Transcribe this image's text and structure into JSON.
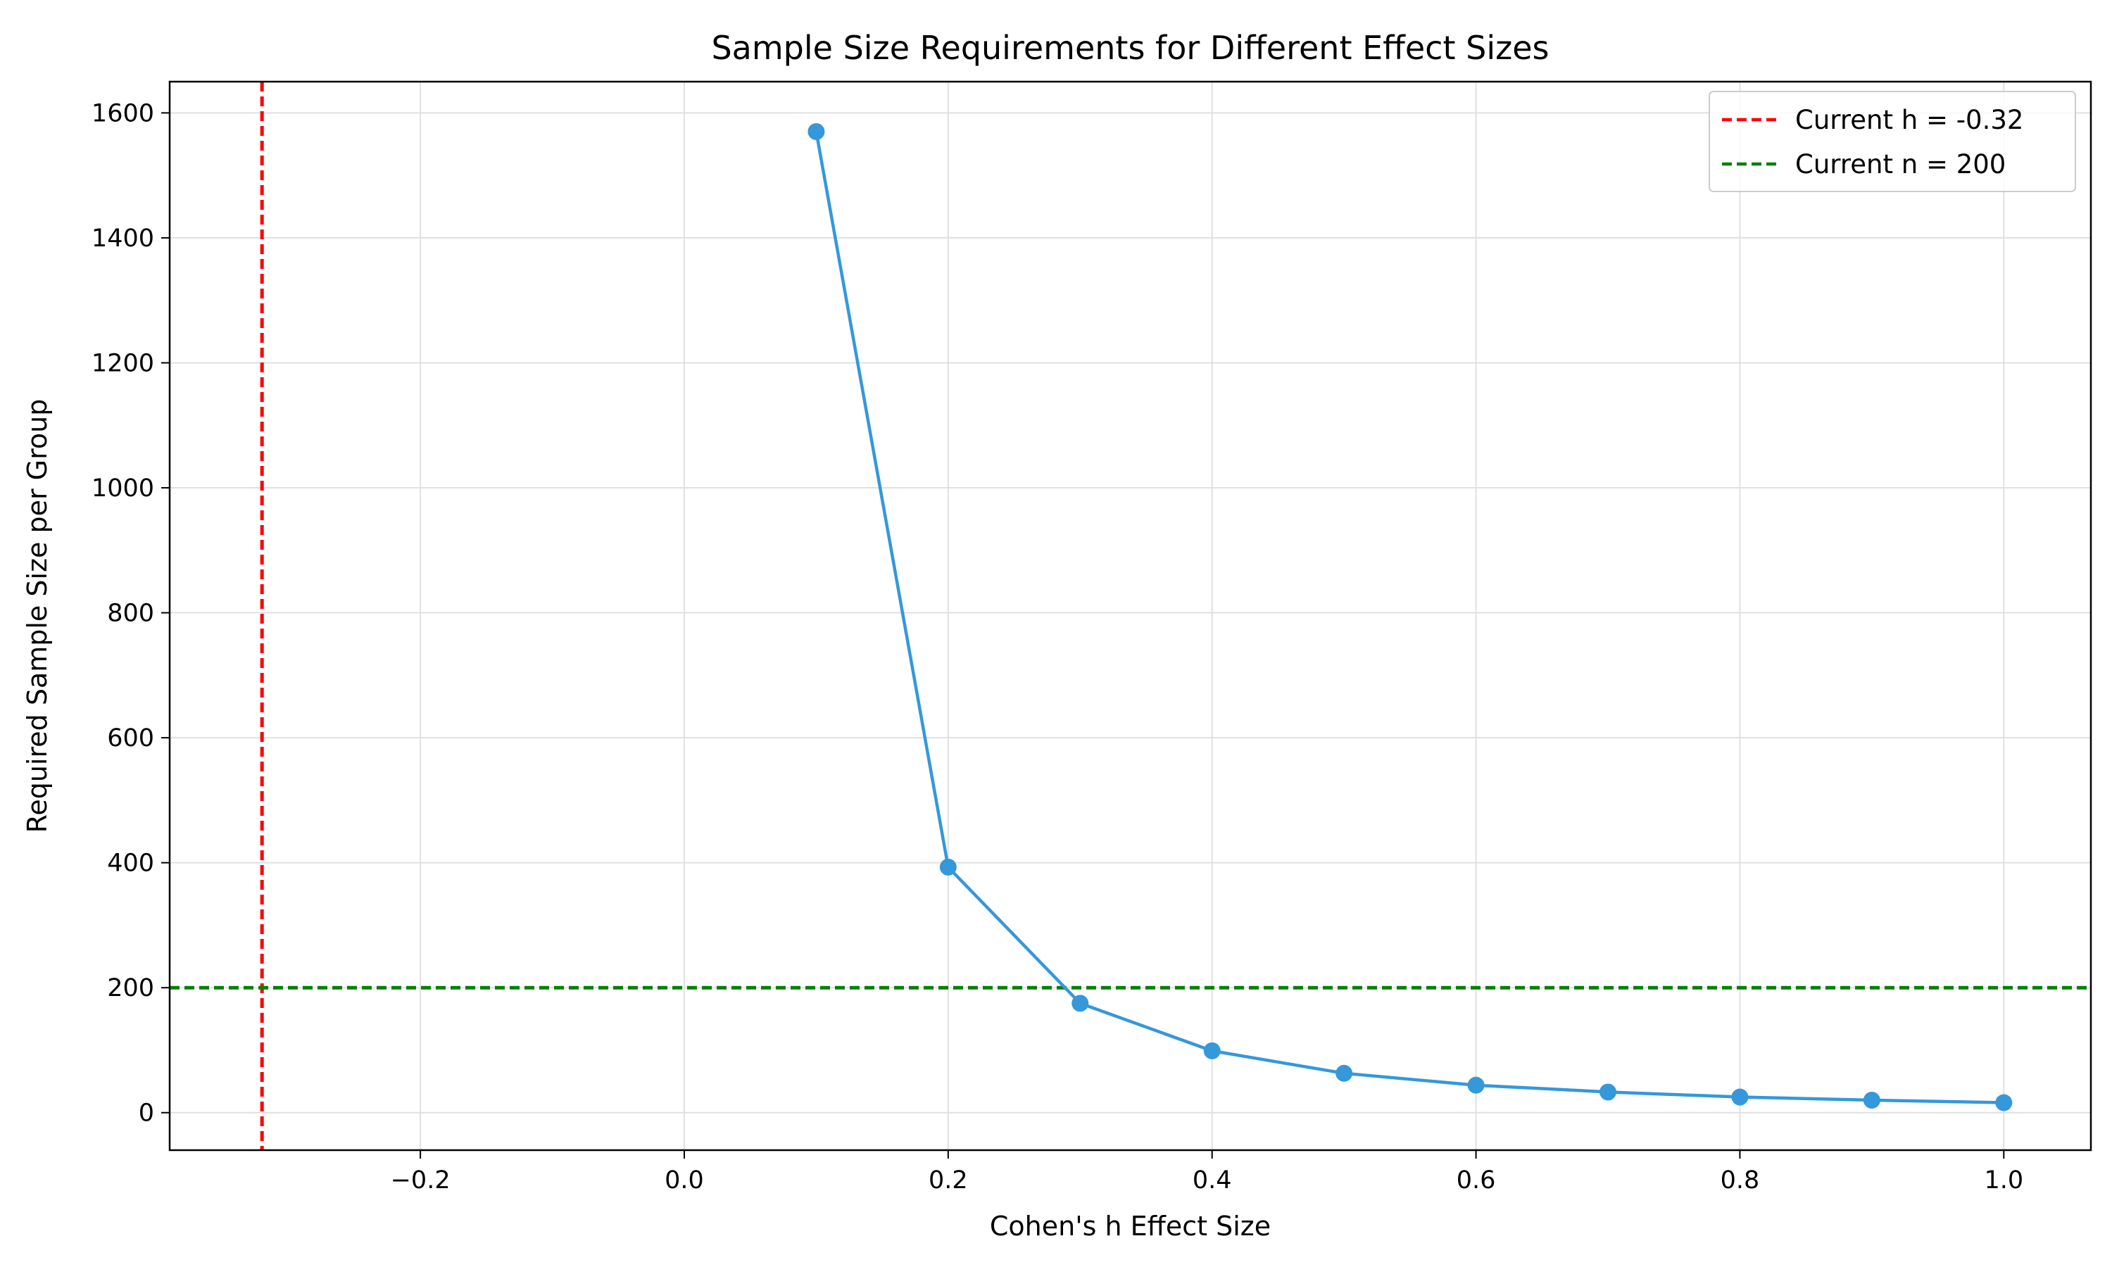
{
  "chart_data": {
    "type": "line",
    "title": "Sample Size Requirements for Different Effect Sizes",
    "xlabel": "Cohen's h Effect Size",
    "ylabel": "Required Sample Size per Group",
    "xlim": [
      -0.39,
      1.066
    ],
    "ylim": [
      -60,
      1650
    ],
    "x_ticks": [
      -0.2,
      0.0,
      0.2,
      0.4,
      0.6,
      0.8,
      1.0
    ],
    "x_tick_labels": [
      "−0.2",
      "0.0",
      "0.2",
      "0.4",
      "0.6",
      "0.8",
      "1.0"
    ],
    "y_ticks": [
      0,
      200,
      400,
      600,
      800,
      1000,
      1200,
      1400,
      1600
    ],
    "y_tick_labels": [
      "0",
      "200",
      "400",
      "600",
      "800",
      "1000",
      "1200",
      "1400",
      "1600"
    ],
    "grid": true,
    "legend_position": "top-right",
    "series": [
      {
        "x": [
          0.1,
          0.2,
          0.3,
          0.4,
          0.5,
          0.6,
          0.7,
          0.8,
          0.9,
          1.0
        ],
        "values": [
          1570,
          393,
          175,
          99,
          63,
          44,
          33,
          25,
          20,
          16
        ],
        "color": "#3498db",
        "marker": "circle"
      }
    ],
    "reference_lines": [
      {
        "orientation": "vertical",
        "value": -0.32,
        "label": "Current h = -0.32",
        "color": "#ff0000",
        "style": "dashed"
      },
      {
        "orientation": "horizontal",
        "value": 200,
        "label": "Current n = 200",
        "color": "#008000",
        "style": "dashed"
      }
    ]
  }
}
